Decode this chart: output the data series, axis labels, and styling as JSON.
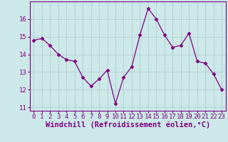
{
  "x": [
    0,
    1,
    2,
    3,
    4,
    5,
    6,
    7,
    8,
    9,
    10,
    11,
    12,
    13,
    14,
    15,
    16,
    17,
    18,
    19,
    20,
    21,
    22,
    23
  ],
  "y": [
    14.8,
    14.9,
    14.5,
    14.0,
    13.7,
    13.6,
    12.7,
    12.2,
    12.6,
    13.1,
    11.2,
    12.7,
    13.3,
    15.1,
    16.6,
    16.0,
    15.1,
    14.4,
    14.5,
    15.2,
    13.6,
    13.5,
    12.9,
    12.0
  ],
  "line_color": "#800080",
  "marker": "D",
  "marker_size": 2.5,
  "background_color": "#cce8e8",
  "grid_color": "#aacaca",
  "xlabel": "Windchill (Refroidissement éolien,°C)",
  "xlabel_fontsize": 7.5,
  "tick_fontsize": 6.5,
  "ylim": [
    10.8,
    17.0
  ],
  "xlim": [
    -0.5,
    23.5
  ],
  "yticks": [
    11,
    12,
    13,
    14,
    15,
    16
  ],
  "xticks": [
    0,
    1,
    2,
    3,
    4,
    5,
    6,
    7,
    8,
    9,
    10,
    11,
    12,
    13,
    14,
    15,
    16,
    17,
    18,
    19,
    20,
    21,
    22,
    23
  ]
}
